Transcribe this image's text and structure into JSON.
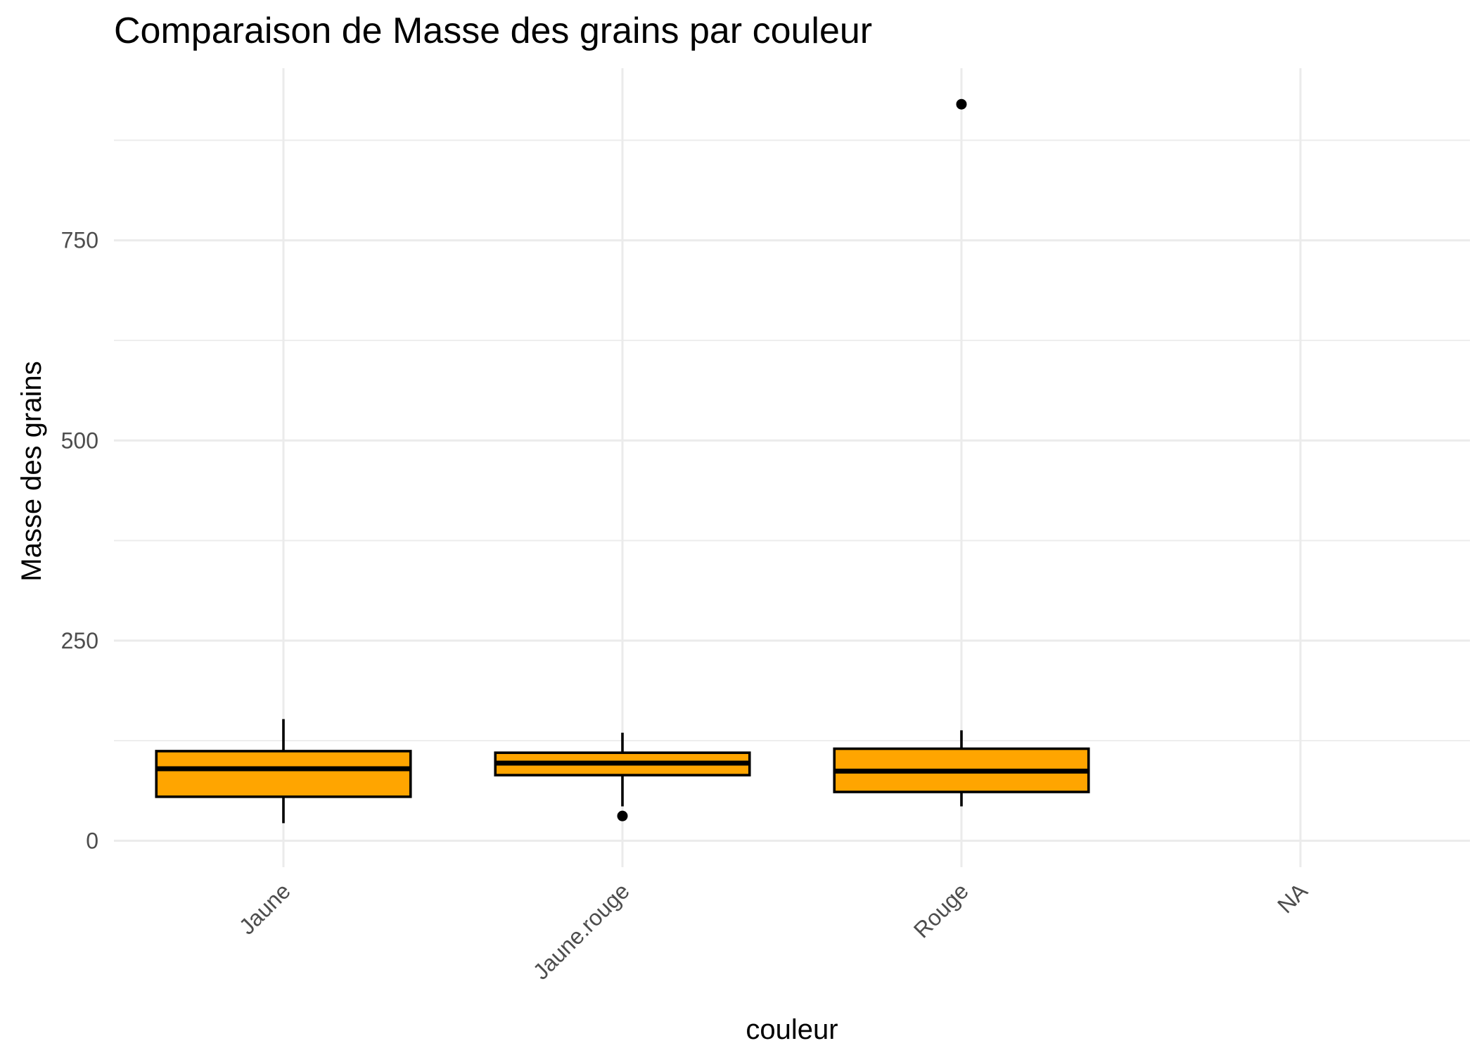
{
  "chart_data": {
    "type": "boxplot",
    "title": "Comparaison de Masse des grains par couleur",
    "xlabel": "couleur",
    "ylabel": "Masse des grains",
    "categories": [
      "Jaune",
      "Jaune.rouge",
      "Rouge",
      "NA"
    ],
    "y_ticks": [
      0,
      250,
      500,
      750
    ],
    "y_tick_labels": [
      "0",
      "250",
      "500",
      "750"
    ],
    "ylim": [
      -33,
      965
    ],
    "grid": true,
    "x_tick_rotation_deg": 45,
    "fill_color": "#FFA500",
    "outline_color": "#000000",
    "boxes": [
      {
        "category": "Jaune",
        "whisker_low": 22,
        "q1": 55,
        "median": 90,
        "q3": 112,
        "whisker_high": 152,
        "outliers": []
      },
      {
        "category": "Jaune.rouge",
        "whisker_low": 43,
        "q1": 82,
        "median": 97,
        "q3": 110,
        "whisker_high": 135,
        "outliers": [
          31
        ]
      },
      {
        "category": "Rouge",
        "whisker_low": 43,
        "q1": 61,
        "median": 87,
        "q3": 115,
        "whisker_high": 138,
        "outliers": [
          920
        ]
      },
      {
        "category": "NA",
        "empty": true
      }
    ]
  }
}
